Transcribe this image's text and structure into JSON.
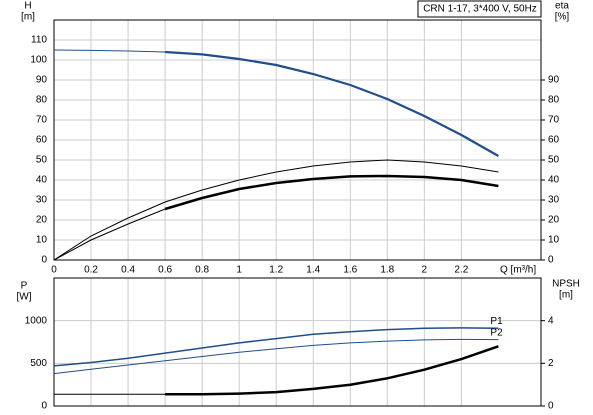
{
  "chart_data": [
    {
      "type": "line",
      "title": "CRN 1-17, 3*400 V, 50Hz",
      "ylabel": [
        "H",
        "[m]"
      ],
      "y2label": [
        "eta",
        "[%]"
      ],
      "xlabel": "Q [m³/h]",
      "x": [
        0,
        0.2,
        0.4,
        0.6,
        0.8,
        1.0,
        1.2,
        1.4,
        1.6,
        1.8,
        2.0,
        2.2,
        2.4
      ],
      "xlim": [
        0,
        2.63
      ],
      "xticks": [
        0,
        0.2,
        0.4,
        0.6,
        0.8,
        1.0,
        1.2,
        1.4,
        1.6,
        1.8,
        2.0,
        2.2
      ],
      "ylim": [
        0,
        120
      ],
      "yticks": [
        0,
        10,
        20,
        30,
        40,
        50,
        60,
        70,
        80,
        90,
        100,
        110
      ],
      "y2lim": [
        0,
        120
      ],
      "y2ticks": [
        0,
        10,
        20,
        30,
        40,
        50,
        60,
        70,
        80,
        90
      ],
      "grid": true,
      "series": [
        {
          "color": "#1f4e8c",
          "line_width": 1,
          "values": [
            105,
            104.8,
            104.5,
            104,
            null,
            null,
            null,
            null,
            null,
            null,
            null,
            null,
            null
          ]
        },
        {
          "color": "#1f4e8c",
          "line_width": 2.2,
          "values": [
            null,
            null,
            null,
            104,
            102.8,
            100.5,
            97.5,
            93,
            87.5,
            80.5,
            72,
            62.5,
            52
          ]
        },
        {
          "color": "#000000",
          "line_width": 1,
          "axis": "y2",
          "values": [
            0,
            12,
            21,
            29,
            35,
            40,
            44,
            47,
            49,
            50,
            49,
            47,
            44
          ]
        },
        {
          "color": "#000000",
          "line_width": 1,
          "axis": "y2",
          "values": [
            0,
            10,
            18,
            25.5,
            null,
            null,
            null,
            null,
            null,
            null,
            null,
            null,
            null
          ]
        },
        {
          "color": "#000000",
          "line_width": 2.5,
          "axis": "y2",
          "values": [
            null,
            null,
            null,
            25.5,
            31,
            35.5,
            38.5,
            40.5,
            41.8,
            42,
            41.5,
            40,
            37
          ]
        }
      ]
    },
    {
      "type": "line",
      "ylabel": [
        "P",
        "[W]"
      ],
      "y2label": [
        "NPSH",
        "[m]"
      ],
      "x": [
        0,
        0.2,
        0.4,
        0.6,
        0.8,
        1.0,
        1.2,
        1.4,
        1.6,
        1.8,
        2.0,
        2.2,
        2.4
      ],
      "xlim": [
        0,
        2.63
      ],
      "xticks": [
        0,
        0.2,
        0.4,
        0.6,
        0.8,
        1.0,
        1.2,
        1.4,
        1.6,
        1.8,
        2.0,
        2.2
      ],
      "ylim": [
        0,
        1500
      ],
      "yticks": [
        0,
        500,
        1000
      ],
      "y2lim": [
        0,
        6
      ],
      "y2ticks": [
        0,
        2,
        4
      ],
      "grid": true,
      "series": [
        {
          "name": "P1",
          "color": "#1f4e8c",
          "line_width": 1.5,
          "values": [
            470,
            510,
            560,
            620,
            680,
            740,
            790,
            840,
            870,
            895,
            910,
            915,
            910
          ]
        },
        {
          "name": "P2",
          "color": "#1f4e8c",
          "line_width": 1,
          "values": [
            380,
            430,
            480,
            530,
            580,
            630,
            670,
            710,
            740,
            760,
            775,
            780,
            778
          ]
        },
        {
          "color": "#000000",
          "line_width": 1,
          "axis": "y2",
          "values": [
            0.55,
            0.55,
            0.55,
            0.55,
            null,
            null,
            null,
            null,
            null,
            null,
            null,
            null,
            null
          ]
        },
        {
          "color": "#000000",
          "line_width": 2.5,
          "axis": "y2",
          "values": [
            null,
            null,
            null,
            0.55,
            0.55,
            0.58,
            0.65,
            0.8,
            1.0,
            1.3,
            1.7,
            2.2,
            2.8
          ]
        }
      ]
    }
  ]
}
